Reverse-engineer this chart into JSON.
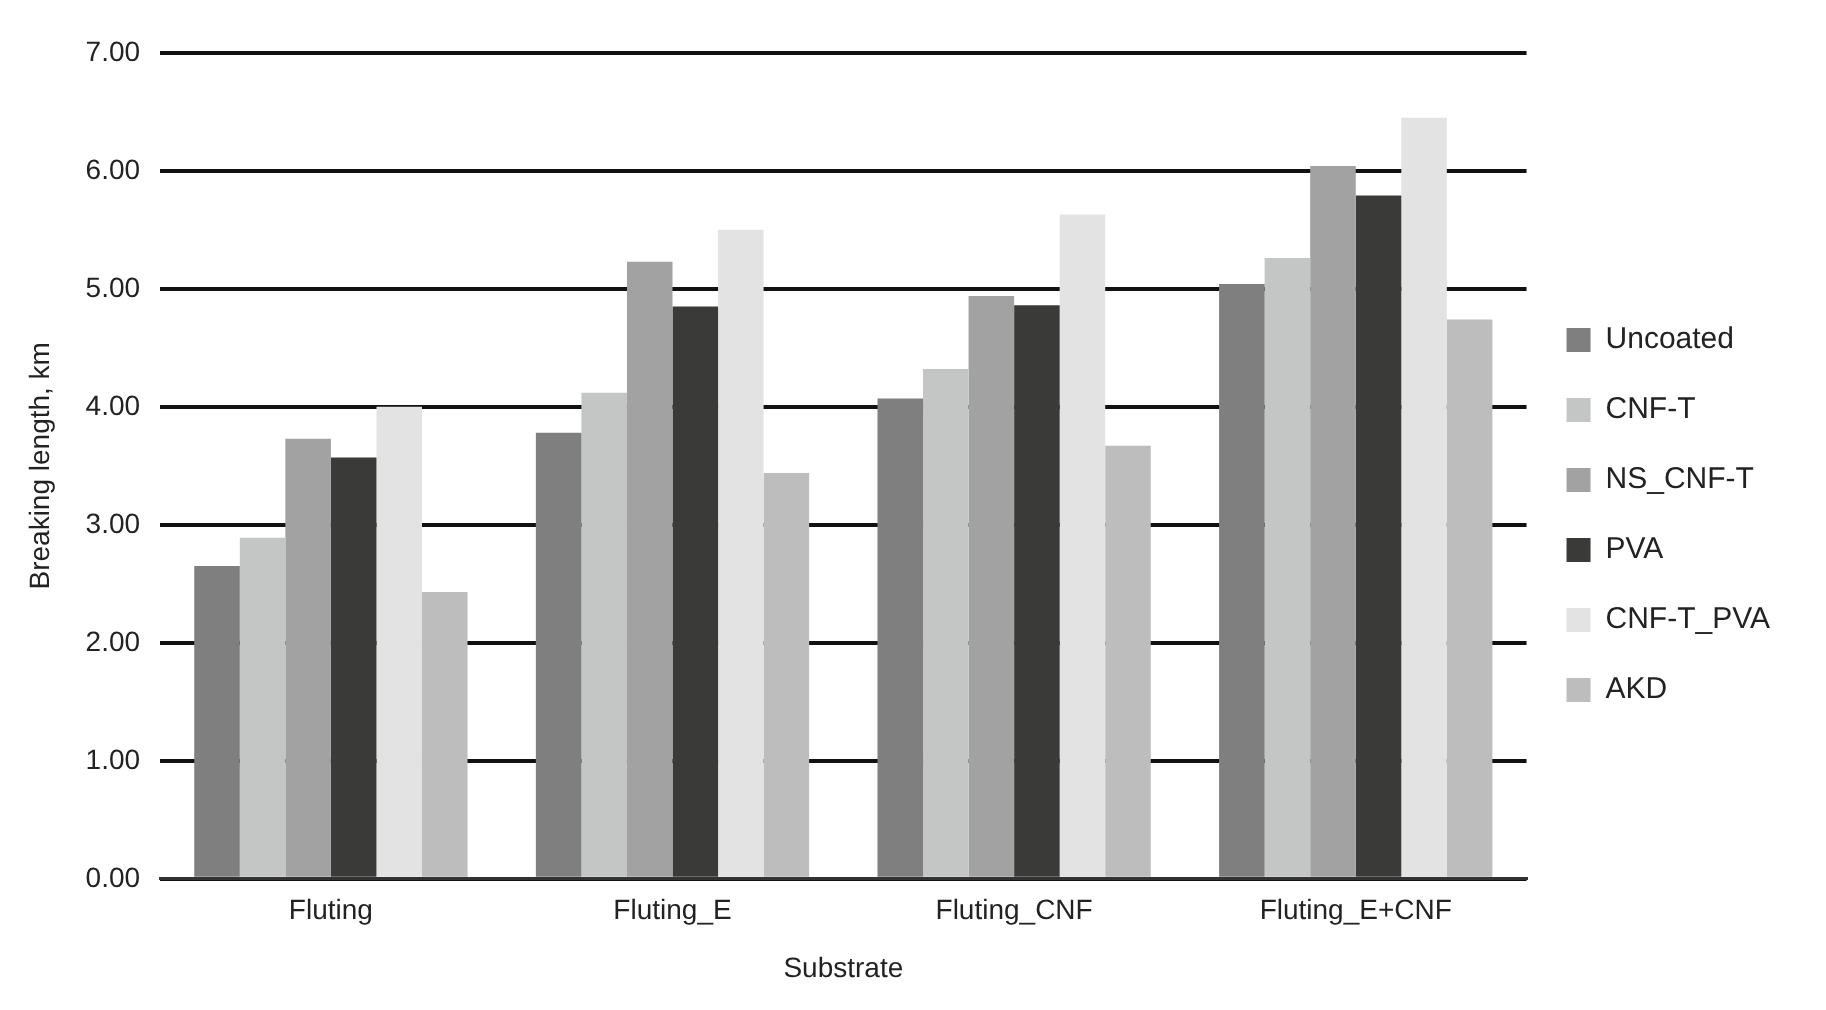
{
  "chart_data": {
    "type": "bar",
    "xlabel": "Substrate",
    "ylabel": "Breaking length, km",
    "categories": [
      "Fluting",
      "Fluting_E",
      "Fluting_CNF",
      "Fluting_E+CNF"
    ],
    "series": [
      {
        "name": "Uncoated",
        "color": "#7f7f7f",
        "values": [
          2.65,
          3.78,
          4.07,
          5.04
        ]
      },
      {
        "name": "CNF-T",
        "color": "#c4c6c5",
        "values": [
          2.89,
          4.12,
          4.32,
          5.26
        ]
      },
      {
        "name": "NS_CNF-T",
        "color": "#a2a2a2",
        "values": [
          3.73,
          5.23,
          4.94,
          6.04
        ]
      },
      {
        "name": "PVA",
        "color": "#3a3a38",
        "values": [
          3.57,
          4.85,
          4.86,
          5.79
        ]
      },
      {
        "name": "CNF-T_PVA",
        "color": "#e2e3e2",
        "values": [
          4.0,
          5.5,
          5.63,
          6.45
        ]
      },
      {
        "name": "AKD",
        "color": "#bcbdbc",
        "values": [
          2.43,
          3.44,
          3.67,
          4.74
        ]
      }
    ],
    "ylim": [
      0,
      7
    ],
    "yticks": [
      {
        "value": 0,
        "label": "0.00"
      },
      {
        "value": 1,
        "label": "1.00"
      },
      {
        "value": 2,
        "label": "2.00"
      },
      {
        "value": 3,
        "label": "3.00"
      },
      {
        "value": 4,
        "label": "4.00"
      },
      {
        "value": 5,
        "label": "5.00"
      },
      {
        "value": 6,
        "label": "6.00"
      },
      {
        "value": 7,
        "label": "7.00"
      }
    ],
    "grid": "y",
    "legend": "right"
  }
}
